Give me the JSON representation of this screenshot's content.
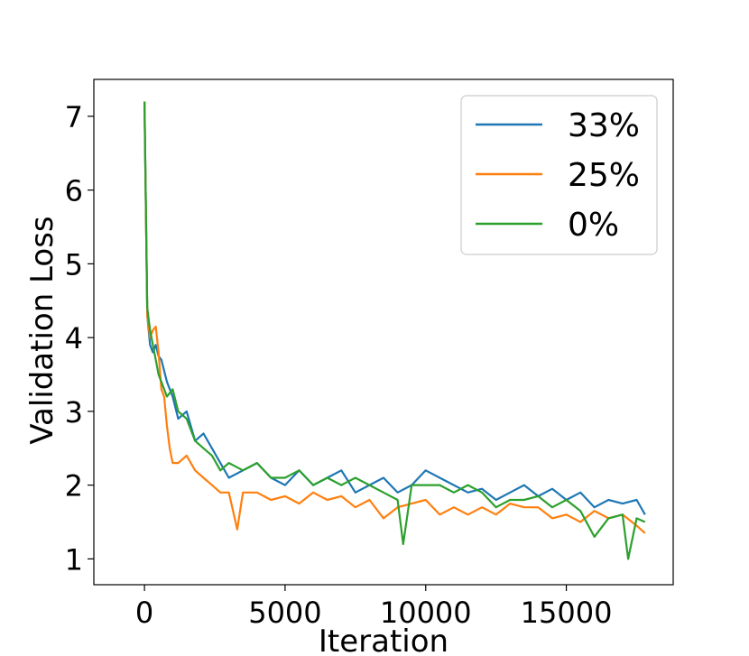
{
  "chart_data": {
    "type": "line",
    "title": "",
    "xlabel": "Iteration",
    "ylabel": "Validation Loss",
    "xlim": [
      -1800,
      18800
    ],
    "ylim": [
      0.65,
      7.5
    ],
    "xticks": [
      0,
      5000,
      10000,
      15000
    ],
    "xtick_labels": [
      "0",
      "5000",
      "10000",
      "15000"
    ],
    "yticks": [
      1,
      2,
      3,
      4,
      5,
      6,
      7
    ],
    "ytick_labels": [
      "1",
      "2",
      "3",
      "4",
      "5",
      "6",
      "7"
    ],
    "grid": false,
    "legend_position": "top-right",
    "series": [
      {
        "name": "33%",
        "color": "#1f77b4",
        "x": [
          0,
          100,
          200,
          300,
          400,
          500,
          600,
          800,
          1000,
          1200,
          1500,
          1800,
          2100,
          2400,
          2700,
          3000,
          3500,
          4000,
          4500,
          5000,
          5500,
          6000,
          6500,
          7000,
          7500,
          8000,
          8500,
          9000,
          9500,
          10000,
          10500,
          11000,
          11500,
          12000,
          12500,
          13000,
          13500,
          14000,
          14500,
          15000,
          15500,
          16000,
          16500,
          17000,
          17500,
          17800
        ],
        "y": [
          7.2,
          4.3,
          3.9,
          3.8,
          3.9,
          3.75,
          3.7,
          3.4,
          3.2,
          2.9,
          3.0,
          2.6,
          2.7,
          2.5,
          2.3,
          2.1,
          2.2,
          2.3,
          2.1,
          2.0,
          2.2,
          2.0,
          2.1,
          2.2,
          1.9,
          2.0,
          2.1,
          1.9,
          2.0,
          2.2,
          2.1,
          2.0,
          1.9,
          1.95,
          1.8,
          1.9,
          2.0,
          1.85,
          1.95,
          1.8,
          1.9,
          1.7,
          1.8,
          1.75,
          1.8,
          1.6
        ]
      },
      {
        "name": "25%",
        "color": "#ff7f0e",
        "x": [
          0,
          100,
          200,
          300,
          400,
          500,
          600,
          700,
          800,
          900,
          1000,
          1200,
          1500,
          1800,
          2100,
          2400,
          2700,
          3000,
          3300,
          3500,
          4000,
          4500,
          5000,
          5500,
          6000,
          6500,
          7000,
          7500,
          8000,
          8500,
          9000,
          9500,
          10000,
          10500,
          11000,
          11500,
          12000,
          12500,
          13000,
          13500,
          14000,
          14500,
          15000,
          15500,
          16000,
          16500,
          17000,
          17500,
          17800
        ],
        "y": [
          7.2,
          4.3,
          4.0,
          4.1,
          4.15,
          3.8,
          3.3,
          3.2,
          2.8,
          2.5,
          2.3,
          2.3,
          2.4,
          2.2,
          2.1,
          2.0,
          1.9,
          1.9,
          1.4,
          1.9,
          1.9,
          1.8,
          1.85,
          1.75,
          1.9,
          1.8,
          1.85,
          1.7,
          1.8,
          1.55,
          1.7,
          1.75,
          1.8,
          1.6,
          1.7,
          1.6,
          1.7,
          1.6,
          1.75,
          1.7,
          1.7,
          1.55,
          1.6,
          1.5,
          1.65,
          1.55,
          1.6,
          1.45,
          1.35
        ]
      },
      {
        "name": "0%",
        "color": "#2ca02c",
        "x": [
          0,
          100,
          200,
          300,
          400,
          500,
          600,
          800,
          1000,
          1200,
          1500,
          1800,
          2100,
          2400,
          2700,
          3000,
          3500,
          4000,
          4500,
          5000,
          5500,
          6000,
          6500,
          7000,
          7500,
          8000,
          8500,
          9000,
          9200,
          9500,
          10000,
          10500,
          11000,
          11500,
          12000,
          12500,
          13000,
          13500,
          14000,
          14500,
          15000,
          15500,
          16000,
          16500,
          17000,
          17200,
          17500,
          17800
        ],
        "y": [
          7.2,
          4.4,
          4.1,
          3.9,
          3.7,
          3.5,
          3.4,
          3.2,
          3.3,
          3.0,
          2.9,
          2.6,
          2.5,
          2.4,
          2.2,
          2.3,
          2.2,
          2.3,
          2.1,
          2.1,
          2.2,
          2.0,
          2.1,
          2.0,
          2.1,
          2.0,
          1.9,
          1.8,
          1.2,
          2.0,
          2.0,
          2.0,
          1.9,
          2.0,
          1.9,
          1.7,
          1.8,
          1.8,
          1.85,
          1.7,
          1.8,
          1.65,
          1.3,
          1.55,
          1.6,
          1.0,
          1.55,
          1.5
        ]
      }
    ]
  }
}
